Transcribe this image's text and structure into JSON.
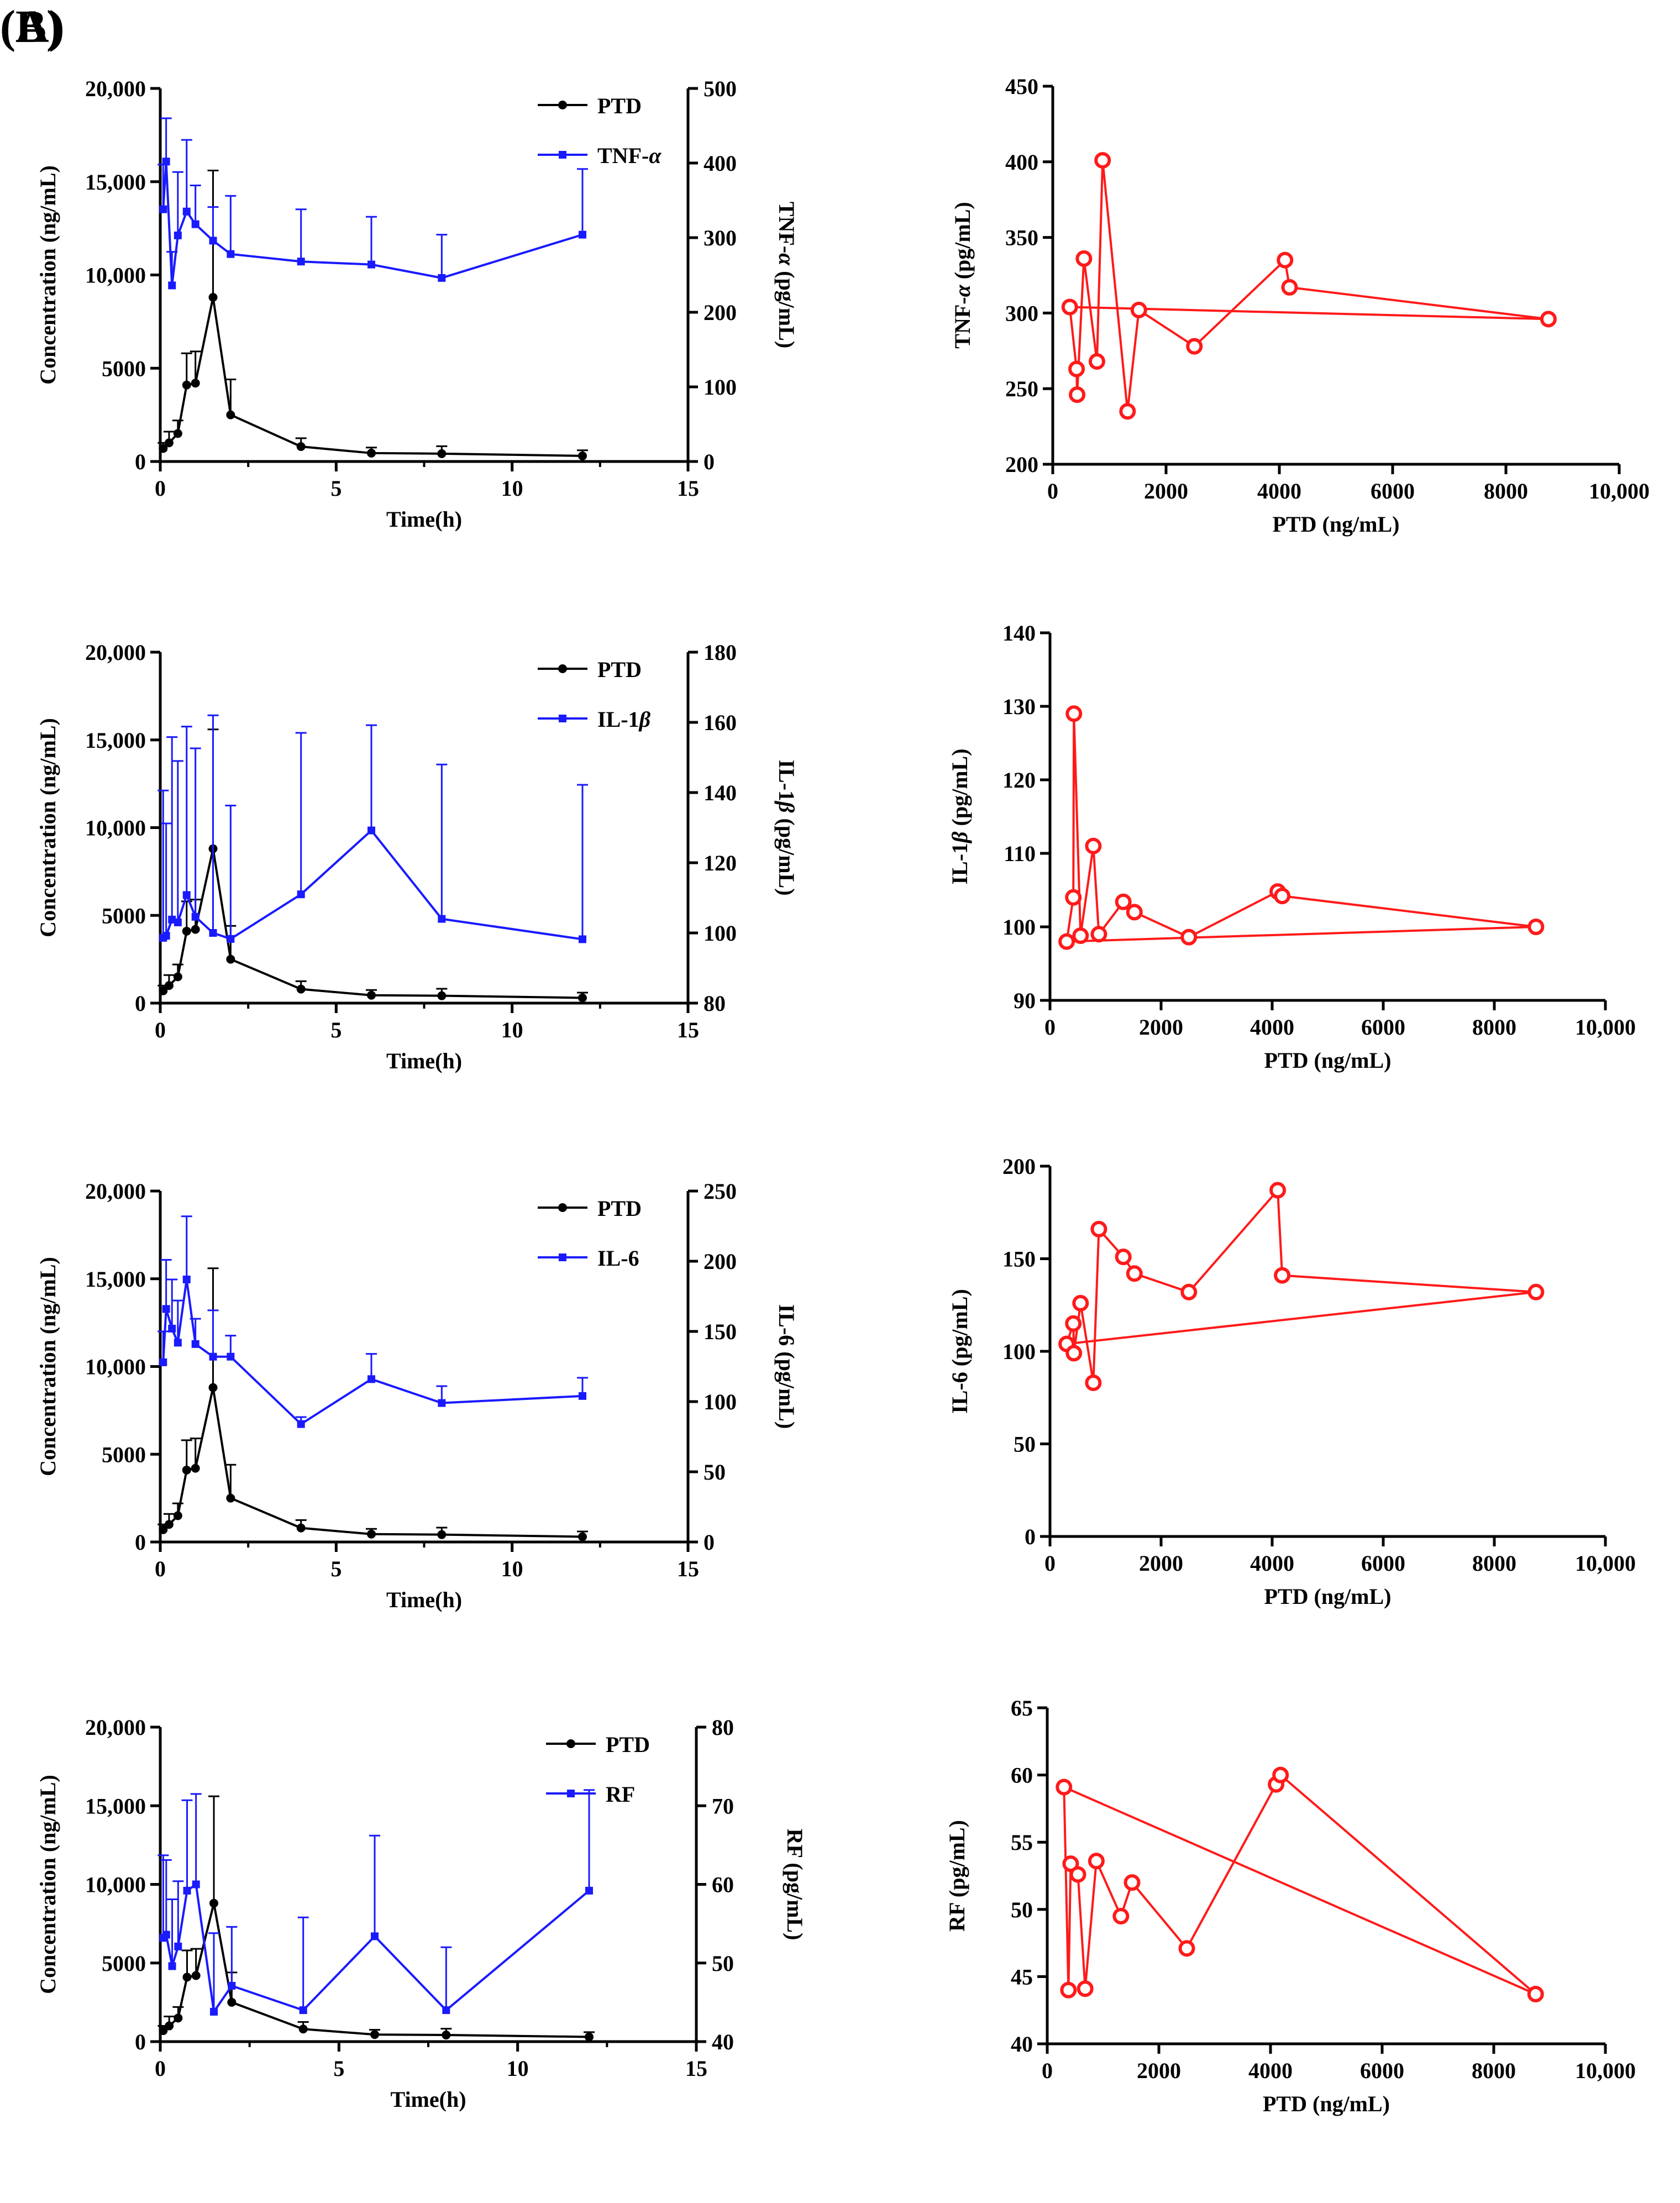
{
  "panel_labels": {
    "a": "(A)",
    "b": "(B)"
  },
  "colors": {
    "ptd": "#000000",
    "marker": "#1a1aff",
    "scatter": "#ff1a1a"
  },
  "chart_data": [
    {
      "id": "a1",
      "type": "line",
      "dual_axis": true,
      "xlabel": "Time(h)",
      "ylabel": "Concentration (ng/mL)",
      "y2label_main": "TNF-",
      "y2label_italic": "α",
      "y2label_unit": " (pg/mL)",
      "xlim": [
        0,
        15
      ],
      "xticks": [
        0,
        5,
        10,
        15
      ],
      "ylim": [
        0,
        20000
      ],
      "yticks": [
        "0",
        "5000",
        "10,000",
        "15,000",
        "20,000"
      ],
      "y2lim": [
        0,
        500
      ],
      "y2ticks": [
        0,
        100,
        200,
        300,
        400,
        500
      ],
      "legend": [
        "PTD",
        "TNF-α"
      ],
      "legend_position": "top-right",
      "series": [
        {
          "name": "PTD",
          "axis": "left",
          "color": "#000000",
          "x": [
            0.083,
            0.25,
            0.5,
            0.75,
            1,
            1.5,
            2,
            4,
            6,
            8,
            12
          ],
          "y": [
            700,
            1000,
            1500,
            4100,
            4200,
            8800,
            2500,
            800,
            450,
            420,
            300
          ],
          "err": [
            300,
            600,
            700,
            1700,
            1700,
            6800,
            1900,
            450,
            300,
            400,
            300
          ]
        },
        {
          "name": "TNF-α",
          "axis": "right",
          "color": "#1a1aff",
          "x": [
            0.083,
            0.167,
            0.333,
            0.5,
            0.75,
            1,
            1.5,
            2,
            4,
            6,
            8,
            12
          ],
          "y": [
            338,
            402,
            236,
            303,
            335,
            318,
            296,
            278,
            268,
            264,
            246,
            304
          ],
          "err": [
            60,
            58,
            45,
            85,
            96,
            52,
            45,
            78,
            70,
            64,
            58,
            88
          ]
        }
      ]
    },
    {
      "id": "a2",
      "type": "line",
      "dual_axis": true,
      "xlabel": "Time(h)",
      "ylabel": "Concentration (ng/mL)",
      "y2label_main": "IL-1",
      "y2label_italic": "β",
      "y2label_unit": " (pg/mL)",
      "xlim": [
        0,
        15
      ],
      "xticks": [
        0,
        5,
        10,
        15
      ],
      "ylim": [
        0,
        20000
      ],
      "yticks": [
        "0",
        "5000",
        "10,000",
        "15,000",
        "20,000"
      ],
      "y2lim": [
        80,
        180
      ],
      "y2ticks": [
        80,
        100,
        120,
        140,
        160,
        180
      ],
      "legend": [
        "PTD",
        "IL-1β"
      ],
      "legend_position": "top-right",
      "series": [
        {
          "name": "PTD",
          "axis": "left",
          "color": "#000000",
          "x": [
            0.083,
            0.25,
            0.5,
            0.75,
            1,
            1.5,
            2,
            4,
            6,
            8,
            12
          ],
          "y": [
            700,
            1000,
            1500,
            4100,
            4200,
            8800,
            2500,
            800,
            450,
            420,
            300
          ],
          "err": [
            300,
            600,
            700,
            1700,
            1700,
            6800,
            1900,
            450,
            300,
            400,
            300
          ]
        },
        {
          "name": "IL-1β",
          "axis": "right",
          "color": "#1a1aff",
          "x": [
            0.083,
            0.167,
            0.333,
            0.5,
            0.75,
            1,
            1.5,
            2,
            4,
            6,
            8,
            12
          ],
          "y": [
            98.6,
            99.2,
            103.8,
            103,
            110.8,
            104.6,
            100,
            98.3,
            111,
            129.2,
            104,
            98.2
          ],
          "err": [
            42,
            32,
            52,
            46,
            48,
            48,
            62,
            38,
            46,
            30,
            44,
            44
          ]
        }
      ]
    },
    {
      "id": "a3",
      "type": "line",
      "dual_axis": true,
      "xlabel": "Time(h)",
      "ylabel": "Concentration (ng/mL)",
      "y2label_main": "IL-6",
      "y2label_italic": "",
      "y2label_unit": " (pg/mL)",
      "xlim": [
        0,
        15
      ],
      "xticks": [
        0,
        5,
        10,
        15
      ],
      "ylim": [
        0,
        20000
      ],
      "yticks": [
        "0",
        "5000",
        "10,000",
        "15,000",
        "20,000"
      ],
      "y2lim": [
        0,
        250
      ],
      "y2ticks": [
        0,
        50,
        100,
        150,
        200,
        250
      ],
      "legend": [
        "PTD",
        "IL-6"
      ],
      "legend_position": "top-right",
      "series": [
        {
          "name": "PTD",
          "axis": "left",
          "color": "#000000",
          "x": [
            0.083,
            0.25,
            0.5,
            0.75,
            1,
            1.5,
            2,
            4,
            6,
            8,
            12
          ],
          "y": [
            700,
            1000,
            1500,
            4100,
            4200,
            8800,
            2500,
            800,
            450,
            420,
            300
          ],
          "err": [
            300,
            600,
            700,
            1700,
            1700,
            6800,
            1900,
            450,
            300,
            400,
            300
          ]
        },
        {
          "name": "IL-6",
          "axis": "right",
          "color": "#1a1aff",
          "x": [
            0.083,
            0.167,
            0.333,
            0.5,
            0.75,
            1,
            1.5,
            2,
            4,
            6,
            8,
            12
          ],
          "y": [
            128,
            166,
            152,
            142,
            187,
            141,
            132,
            132,
            84,
            116,
            99,
            104
          ],
          "err": [
            22,
            35,
            35,
            30,
            45,
            18,
            33,
            15,
            5,
            18,
            12,
            13
          ]
        }
      ]
    },
    {
      "id": "a4",
      "type": "line",
      "dual_axis": true,
      "xlabel": "Time(h)",
      "ylabel": "Concentration (ng/mL)",
      "y2label_main": "RF",
      "y2label_italic": "",
      "y2label_unit": " (pg/mL)",
      "xlim": [
        0,
        15
      ],
      "xticks": [
        0,
        5,
        10,
        15
      ],
      "ylim": [
        0,
        20000
      ],
      "yticks": [
        "0",
        "5000",
        "10,000",
        "15,000",
        "20,000"
      ],
      "y2lim": [
        40,
        80
      ],
      "y2ticks": [
        40,
        50,
        60,
        70,
        80
      ],
      "legend": [
        "PTD",
        "RF"
      ],
      "legend_position": "top-right",
      "series": [
        {
          "name": "PTD",
          "axis": "left",
          "color": "#000000",
          "x": [
            0.083,
            0.25,
            0.5,
            0.75,
            1,
            1.5,
            2,
            4,
            6,
            8,
            12
          ],
          "y": [
            700,
            1000,
            1500,
            4100,
            4200,
            8800,
            2500,
            800,
            450,
            420,
            300
          ],
          "err": [
            300,
            600,
            700,
            1700,
            1700,
            6800,
            1900,
            450,
            300,
            400,
            300
          ]
        },
        {
          "name": "RF",
          "axis": "right",
          "color": "#1a1aff",
          "x": [
            0.083,
            0.167,
            0.333,
            0.5,
            0.75,
            1,
            1.5,
            2,
            4,
            6,
            8,
            12
          ],
          "y": [
            53.2,
            53.6,
            49.6,
            52.1,
            59.2,
            60,
            43.8,
            47.1,
            44,
            53.4,
            44,
            59.2
          ],
          "err": [
            10.5,
            9.5,
            8.5,
            8.3,
            11.5,
            11.5,
            10,
            7.5,
            11.8,
            12.8,
            8,
            12.8
          ]
        }
      ]
    },
    {
      "id": "b1",
      "type": "scatter",
      "connected": true,
      "xlabel": "PTD (ng/mL)",
      "ylabel_main": "TNF-",
      "ylabel_italic": "α",
      "ylabel_unit": " (pg/mL)",
      "xlim": [
        0,
        10000
      ],
      "xticks": [
        "0",
        "2000",
        "4000",
        "6000",
        "8000",
        "10,000"
      ],
      "ylim": [
        200,
        450
      ],
      "yticks": [
        200,
        250,
        300,
        350,
        400,
        450
      ],
      "series": [
        {
          "name": "",
          "color": "#ff1a1a",
          "x": [
            300,
            420,
            430,
            550,
            780,
            880,
            1320,
            1520,
            2500,
            4100,
            4180,
            8750
          ],
          "y": [
            304,
            263,
            246,
            336,
            268,
            401,
            235,
            302,
            278,
            335,
            317,
            296
          ]
        }
      ]
    },
    {
      "id": "b2",
      "type": "scatter",
      "connected": true,
      "xlabel": "PTD (ng/mL)",
      "ylabel_main": "IL-1",
      "ylabel_italic": "β",
      "ylabel_unit": " (pg/mL)",
      "xlim": [
        0,
        10000
      ],
      "xticks": [
        "0",
        "2000",
        "4000",
        "6000",
        "8000",
        "10,000"
      ],
      "ylim": [
        90,
        140
      ],
      "yticks": [
        90,
        100,
        110,
        120,
        130,
        140
      ],
      "series": [
        {
          "name": "",
          "color": "#ff1a1a",
          "x": [
            300,
            420,
            430,
            550,
            780,
            880,
            1320,
            1520,
            2500,
            4100,
            4180,
            8750
          ],
          "y": [
            98,
            104,
            129,
            98.8,
            111,
            99,
            103.4,
            102,
            98.6,
            104.8,
            104.2,
            100
          ]
        }
      ]
    },
    {
      "id": "b3",
      "type": "scatter",
      "connected": true,
      "xlabel": "PTD (ng/mL)",
      "ylabel_main": "IL-6",
      "ylabel_italic": "",
      "ylabel_unit": " (pg/mL)",
      "xlim": [
        0,
        10000
      ],
      "xticks": [
        "0",
        "2000",
        "4000",
        "6000",
        "8000",
        "10,000"
      ],
      "ylim": [
        0,
        200
      ],
      "yticks": [
        0,
        50,
        100,
        150,
        200
      ],
      "series": [
        {
          "name": "",
          "color": "#ff1a1a",
          "x": [
            300,
            420,
            430,
            550,
            780,
            880,
            1320,
            1520,
            2500,
            4100,
            4180,
            8750
          ],
          "y": [
            104,
            115,
            99,
            126,
            83,
            166,
            151,
            142,
            132,
            187,
            141,
            132
          ]
        }
      ]
    },
    {
      "id": "b4",
      "type": "scatter",
      "connected": true,
      "xlabel": "PTD (ng/mL)",
      "ylabel_main": "RF",
      "ylabel_italic": "",
      "ylabel_unit": " (pg/mL)",
      "xlim": [
        0,
        10000
      ],
      "xticks": [
        "0",
        "2000",
        "4000",
        "6000",
        "8000",
        "10,000"
      ],
      "ylim": [
        40,
        65
      ],
      "yticks": [
        40,
        45,
        50,
        55,
        60,
        65
      ],
      "series": [
        {
          "name": "",
          "color": "#ff1a1a",
          "x": [
            300,
            380,
            420,
            550,
            680,
            880,
            1320,
            1520,
            2500,
            4100,
            4180,
            8750
          ],
          "y": [
            59.1,
            44,
            53.4,
            52.6,
            44.1,
            53.6,
            49.5,
            52,
            47.1,
            59.3,
            60,
            43.7
          ]
        }
      ]
    }
  ]
}
